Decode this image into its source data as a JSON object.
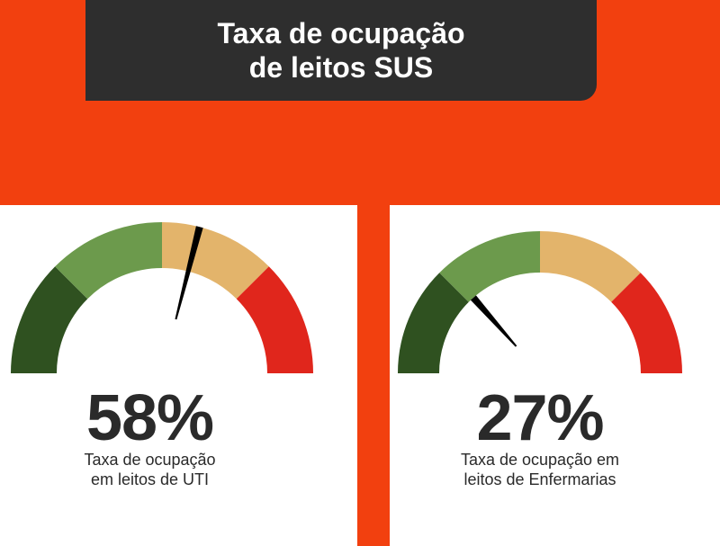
{
  "header": {
    "title_line1": "Taxa de ocupação",
    "title_line2": "de leitos SUS"
  },
  "colors": {
    "background": "#f2400f",
    "title_box": "#2e2e2e",
    "zone_dark_green": "#2f5120",
    "zone_light_green": "#6c9a4c",
    "zone_orange": "#e3b46b",
    "zone_red": "#e0261c",
    "needle": "#000000"
  },
  "chart_data": [
    {
      "type": "gauge",
      "value": 58,
      "range": [
        0,
        100
      ],
      "value_label": "58%",
      "caption_line1": "Taxa de ocupação",
      "caption_line2": "em leitos de UTI"
    },
    {
      "type": "gauge",
      "value": 27,
      "range": [
        0,
        100
      ],
      "value_label": "27%",
      "caption_line1": "Taxa de ocupação em",
      "caption_line2": "leitos de Enfermarias"
    }
  ]
}
